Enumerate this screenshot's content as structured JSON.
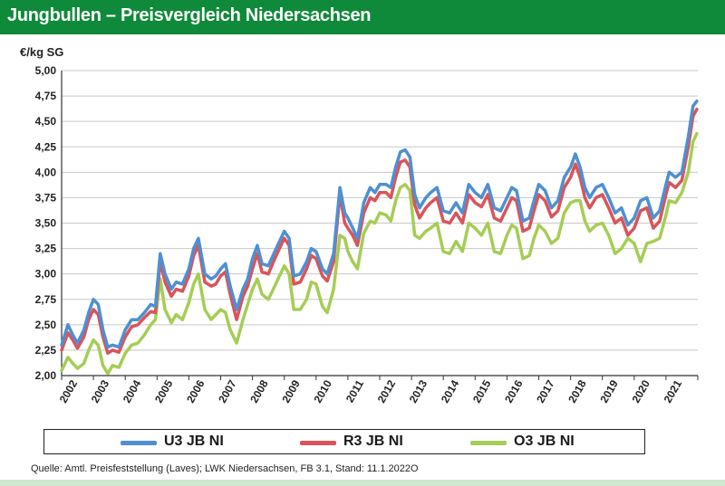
{
  "header": {
    "title": "Jungbullen – Preisvergleich Niedersachsen"
  },
  "source": "Quelle: Amtl. Preisfeststellung (Laves); LWK Niedersachsen, FB 3.1, Stand: 11.1.2022O",
  "colors": {
    "header": "#0f8a3a",
    "u3": "#4f8fd2",
    "r3": "#d9545a",
    "o3": "#a5cd55"
  },
  "chart_data": {
    "type": "line",
    "ylabel": "€/kg SG",
    "ylim": [
      2.0,
      5.0
    ],
    "yticks": [
      "2,00",
      "2,25",
      "2,50",
      "2,75",
      "3,00",
      "3,25",
      "3,50",
      "3,75",
      "4,00",
      "4,25",
      "4,50",
      "4,75",
      "5,00"
    ],
    "xticks": [
      "2002",
      "2003",
      "2004",
      "2005",
      "2006",
      "2007",
      "2008",
      "2009",
      "2010",
      "2011",
      "2012",
      "2013",
      "2014",
      "2015",
      "2016",
      "2017",
      "2018",
      "2019",
      "2020",
      "2021"
    ],
    "xlim": [
      2002.0,
      2022.0
    ],
    "grid": true,
    "legend_position": "bottom",
    "series": [
      {
        "name": "U3 JB NI",
        "x": [
          2002.0,
          2002.2,
          2002.35,
          2002.5,
          2002.7,
          2002.85,
          2003.0,
          2003.15,
          2003.3,
          2003.45,
          2003.6,
          2003.8,
          2004.0,
          2004.2,
          2004.4,
          2004.6,
          2004.8,
          2004.95,
          2005.1,
          2005.25,
          2005.45,
          2005.6,
          2005.8,
          2006.0,
          2006.15,
          2006.3,
          2006.5,
          2006.7,
          2006.85,
          2007.0,
          2007.15,
          2007.3,
          2007.5,
          2007.7,
          2007.85,
          2008.0,
          2008.15,
          2008.3,
          2008.5,
          2008.7,
          2008.85,
          2009.0,
          2009.15,
          2009.3,
          2009.5,
          2009.7,
          2009.85,
          2010.0,
          2010.2,
          2010.35,
          2010.55,
          2010.75,
          2010.9,
          2011.0,
          2011.15,
          2011.3,
          2011.5,
          2011.7,
          2011.85,
          2012.0,
          2012.2,
          2012.35,
          2012.5,
          2012.65,
          2012.8,
          2012.95,
          2013.1,
          2013.25,
          2013.45,
          2013.6,
          2013.8,
          2014.0,
          2014.2,
          2014.4,
          2014.6,
          2014.8,
          2015.0,
          2015.2,
          2015.4,
          2015.6,
          2015.8,
          2016.0,
          2016.15,
          2016.3,
          2016.5,
          2016.7,
          2016.85,
          2017.0,
          2017.2,
          2017.4,
          2017.6,
          2017.8,
          2018.0,
          2018.15,
          2018.3,
          2018.45,
          2018.6,
          2018.8,
          2019.0,
          2019.2,
          2019.4,
          2019.6,
          2019.8,
          2020.0,
          2020.2,
          2020.4,
          2020.6,
          2020.8,
          2021.0,
          2021.1,
          2021.3,
          2021.5,
          2021.7,
          2021.85,
          2021.97
        ],
        "values": [
          2.3,
          2.5,
          2.4,
          2.32,
          2.45,
          2.62,
          2.75,
          2.7,
          2.45,
          2.28,
          2.3,
          2.28,
          2.45,
          2.55,
          2.55,
          2.62,
          2.7,
          2.68,
          3.2,
          3.0,
          2.85,
          2.92,
          2.9,
          3.05,
          3.25,
          3.35,
          3.0,
          2.95,
          2.98,
          3.05,
          3.1,
          2.88,
          2.65,
          2.85,
          2.95,
          3.15,
          3.28,
          3.1,
          3.08,
          3.22,
          3.32,
          3.42,
          3.35,
          2.98,
          3.0,
          3.12,
          3.25,
          3.22,
          3.05,
          3.0,
          3.2,
          3.85,
          3.6,
          3.55,
          3.45,
          3.35,
          3.7,
          3.85,
          3.8,
          3.88,
          3.88,
          3.85,
          4.05,
          4.2,
          4.22,
          4.15,
          3.78,
          3.65,
          3.75,
          3.8,
          3.85,
          3.62,
          3.6,
          3.7,
          3.6,
          3.88,
          3.8,
          3.75,
          3.88,
          3.65,
          3.62,
          3.75,
          3.85,
          3.82,
          3.52,
          3.55,
          3.72,
          3.88,
          3.82,
          3.65,
          3.72,
          3.95,
          4.05,
          4.18,
          4.05,
          3.85,
          3.75,
          3.85,
          3.88,
          3.75,
          3.6,
          3.65,
          3.48,
          3.55,
          3.72,
          3.75,
          3.55,
          3.62,
          3.88,
          4.0,
          3.95,
          4.0,
          4.35,
          4.65,
          4.7
        ]
      },
      {
        "name": "R3 JB NI",
        "x": [
          2002.0,
          2002.2,
          2002.35,
          2002.5,
          2002.7,
          2002.85,
          2003.0,
          2003.15,
          2003.3,
          2003.45,
          2003.6,
          2003.8,
          2004.0,
          2004.2,
          2004.4,
          2004.6,
          2004.8,
          2004.95,
          2005.1,
          2005.25,
          2005.45,
          2005.6,
          2005.8,
          2006.0,
          2006.15,
          2006.3,
          2006.5,
          2006.7,
          2006.85,
          2007.0,
          2007.15,
          2007.3,
          2007.5,
          2007.7,
          2007.85,
          2008.0,
          2008.15,
          2008.3,
          2008.5,
          2008.7,
          2008.85,
          2009.0,
          2009.15,
          2009.3,
          2009.5,
          2009.7,
          2009.85,
          2010.0,
          2010.2,
          2010.35,
          2010.55,
          2010.75,
          2010.9,
          2011.0,
          2011.15,
          2011.3,
          2011.5,
          2011.7,
          2011.85,
          2012.0,
          2012.2,
          2012.35,
          2012.5,
          2012.65,
          2012.8,
          2012.95,
          2013.1,
          2013.25,
          2013.45,
          2013.6,
          2013.8,
          2014.0,
          2014.2,
          2014.4,
          2014.6,
          2014.8,
          2015.0,
          2015.2,
          2015.4,
          2015.6,
          2015.8,
          2016.0,
          2016.15,
          2016.3,
          2016.5,
          2016.7,
          2016.85,
          2017.0,
          2017.2,
          2017.4,
          2017.6,
          2017.8,
          2018.0,
          2018.15,
          2018.3,
          2018.45,
          2018.6,
          2018.8,
          2019.0,
          2019.2,
          2019.4,
          2019.6,
          2019.8,
          2020.0,
          2020.2,
          2020.4,
          2020.6,
          2020.8,
          2021.0,
          2021.1,
          2021.3,
          2021.5,
          2021.7,
          2021.85,
          2021.97
        ],
        "values": [
          2.25,
          2.42,
          2.35,
          2.27,
          2.38,
          2.55,
          2.65,
          2.6,
          2.38,
          2.22,
          2.25,
          2.23,
          2.38,
          2.48,
          2.5,
          2.57,
          2.63,
          2.62,
          3.12,
          2.92,
          2.78,
          2.85,
          2.83,
          2.98,
          3.18,
          3.28,
          2.92,
          2.88,
          2.9,
          2.98,
          3.02,
          2.8,
          2.55,
          2.78,
          2.88,
          3.05,
          3.2,
          3.02,
          3.0,
          3.15,
          3.25,
          3.35,
          3.28,
          2.9,
          2.92,
          3.05,
          3.18,
          3.15,
          2.98,
          2.93,
          3.12,
          3.78,
          3.5,
          3.45,
          3.38,
          3.28,
          3.6,
          3.75,
          3.72,
          3.8,
          3.8,
          3.75,
          3.95,
          4.1,
          4.12,
          4.05,
          3.68,
          3.55,
          3.65,
          3.7,
          3.75,
          3.52,
          3.5,
          3.6,
          3.5,
          3.78,
          3.7,
          3.66,
          3.78,
          3.55,
          3.52,
          3.65,
          3.75,
          3.72,
          3.42,
          3.45,
          3.62,
          3.78,
          3.72,
          3.56,
          3.62,
          3.85,
          3.95,
          4.08,
          3.95,
          3.75,
          3.65,
          3.75,
          3.78,
          3.65,
          3.5,
          3.55,
          3.38,
          3.45,
          3.62,
          3.65,
          3.45,
          3.52,
          3.78,
          3.9,
          3.85,
          3.92,
          4.25,
          4.55,
          4.62
        ]
      },
      {
        "name": "O3 JB NI",
        "x": [
          2002.0,
          2002.2,
          2002.35,
          2002.5,
          2002.7,
          2002.85,
          2003.0,
          2003.15,
          2003.3,
          2003.45,
          2003.6,
          2003.8,
          2004.0,
          2004.2,
          2004.4,
          2004.6,
          2004.8,
          2004.95,
          2005.1,
          2005.25,
          2005.45,
          2005.6,
          2005.8,
          2006.0,
          2006.15,
          2006.3,
          2006.5,
          2006.7,
          2006.85,
          2007.0,
          2007.15,
          2007.3,
          2007.5,
          2007.7,
          2007.85,
          2008.0,
          2008.15,
          2008.3,
          2008.5,
          2008.7,
          2008.85,
          2009.0,
          2009.15,
          2009.3,
          2009.5,
          2009.7,
          2009.85,
          2010.0,
          2010.2,
          2010.35,
          2010.55,
          2010.75,
          2010.9,
          2011.0,
          2011.15,
          2011.3,
          2011.5,
          2011.7,
          2011.85,
          2012.0,
          2012.2,
          2012.35,
          2012.5,
          2012.65,
          2012.8,
          2012.95,
          2013.1,
          2013.25,
          2013.45,
          2013.6,
          2013.8,
          2014.0,
          2014.2,
          2014.4,
          2014.6,
          2014.8,
          2015.0,
          2015.2,
          2015.4,
          2015.6,
          2015.8,
          2016.0,
          2016.15,
          2016.3,
          2016.5,
          2016.7,
          2016.85,
          2017.0,
          2017.2,
          2017.4,
          2017.6,
          2017.8,
          2018.0,
          2018.15,
          2018.3,
          2018.45,
          2018.6,
          2018.8,
          2019.0,
          2019.2,
          2019.4,
          2019.6,
          2019.8,
          2020.0,
          2020.2,
          2020.4,
          2020.6,
          2020.8,
          2021.0,
          2021.1,
          2021.3,
          2021.5,
          2021.7,
          2021.85,
          2021.97
        ],
        "values": [
          2.05,
          2.18,
          2.12,
          2.07,
          2.12,
          2.25,
          2.35,
          2.3,
          2.1,
          2.02,
          2.1,
          2.08,
          2.22,
          2.3,
          2.32,
          2.4,
          2.5,
          2.55,
          2.95,
          2.65,
          2.52,
          2.6,
          2.55,
          2.72,
          2.9,
          3.0,
          2.65,
          2.55,
          2.6,
          2.65,
          2.62,
          2.45,
          2.32,
          2.55,
          2.7,
          2.85,
          2.95,
          2.8,
          2.75,
          2.88,
          2.98,
          3.08,
          3.0,
          2.65,
          2.65,
          2.75,
          2.92,
          2.9,
          2.68,
          2.62,
          2.85,
          3.38,
          3.35,
          3.22,
          3.12,
          3.05,
          3.4,
          3.52,
          3.5,
          3.6,
          3.58,
          3.52,
          3.72,
          3.85,
          3.88,
          3.82,
          3.38,
          3.35,
          3.42,
          3.45,
          3.5,
          3.22,
          3.2,
          3.32,
          3.22,
          3.5,
          3.45,
          3.38,
          3.5,
          3.22,
          3.2,
          3.38,
          3.48,
          3.45,
          3.15,
          3.18,
          3.35,
          3.48,
          3.42,
          3.3,
          3.35,
          3.6,
          3.7,
          3.72,
          3.72,
          3.52,
          3.42,
          3.48,
          3.5,
          3.38,
          3.2,
          3.25,
          3.35,
          3.3,
          3.12,
          3.3,
          3.32,
          3.35,
          3.58,
          3.72,
          3.7,
          3.8,
          4.0,
          4.3,
          4.38
        ]
      }
    ]
  }
}
